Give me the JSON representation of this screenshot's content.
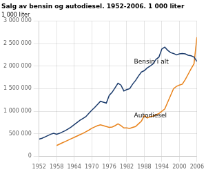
{
  "chart_data": {
    "type": "line",
    "title": "Salg av bensin og autodiesel. 1952-2006. 1 000 liter",
    "ylabel": "1 000 liter",
    "xlim": [
      1952,
      2006
    ],
    "ylim": [
      0,
      3000000
    ],
    "xticks": [
      1952,
      1958,
      1964,
      1970,
      1976,
      1982,
      1988,
      1994,
      2000,
      2006
    ],
    "yticks": [
      0,
      {
        "value": 500000,
        "label": "500 000"
      },
      {
        "value": 1000000,
        "label": "1 000 000"
      },
      {
        "value": 1500000,
        "label": "1 500 000"
      },
      {
        "value": 2000000,
        "label": "2 000 000"
      },
      {
        "value": 2500000,
        "label": "2 500 000"
      },
      {
        "value": 3000000,
        "label": "3 000 000"
      }
    ],
    "grid": true,
    "series": [
      {
        "color": "#1a3a6b",
        "x": [
          1952,
          1953,
          1954,
          1955,
          1956,
          1957,
          1958,
          1959,
          1960,
          1961,
          1962,
          1963,
          1964,
          1965,
          1966,
          1967,
          1968,
          1969,
          1970,
          1971,
          1972,
          1973,
          1974,
          1975,
          1976,
          1977,
          1978,
          1979,
          1980,
          1981,
          1982,
          1983,
          1984,
          1985,
          1986,
          1987,
          1988,
          1989,
          1990,
          1991,
          1992,
          1993,
          1994,
          1995,
          1996,
          1997,
          1998,
          1999,
          2000,
          2001,
          2002,
          2003,
          2004,
          2005,
          2006
        ],
        "values": [
          380000,
          400000,
          430000,
          460000,
          490000,
          510000,
          490000,
          510000,
          540000,
          570000,
          610000,
          650000,
          700000,
          750000,
          800000,
          840000,
          880000,
          950000,
          1020000,
          1080000,
          1150000,
          1220000,
          1200000,
          1180000,
          1350000,
          1420000,
          1520000,
          1620000,
          1580000,
          1450000,
          1480000,
          1500000,
          1600000,
          1680000,
          1780000,
          1870000,
          1900000,
          1960000,
          2000000,
          2050000,
          2150000,
          2200000,
          2380000,
          2420000,
          2350000,
          2300000,
          2280000,
          2250000,
          2270000,
          2280000,
          2270000,
          2240000,
          2230000,
          2200000,
          2100000
        ]
      },
      {
        "color": "#e8821a",
        "x": [
          1958,
          1959,
          1960,
          1961,
          1962,
          1963,
          1964,
          1965,
          1966,
          1967,
          1968,
          1969,
          1970,
          1971,
          1972,
          1973,
          1974,
          1975,
          1976,
          1977,
          1978,
          1979,
          1980,
          1981,
          1982,
          1983,
          1984,
          1985,
          1986,
          1987,
          1988,
          1989,
          1990,
          1991,
          1992,
          1993,
          1994,
          1995,
          1996,
          1997,
          1998,
          1999,
          2000,
          2001,
          2002,
          2003,
          2004,
          2005,
          2006
        ],
        "values": [
          240000,
          270000,
          300000,
          330000,
          360000,
          390000,
          420000,
          450000,
          480000,
          510000,
          545000,
          580000,
          620000,
          650000,
          680000,
          700000,
          680000,
          660000,
          640000,
          650000,
          680000,
          720000,
          680000,
          630000,
          630000,
          620000,
          640000,
          660000,
          720000,
          780000,
          900000,
          850000,
          880000,
          890000,
          920000,
          950000,
          1000000,
          1050000,
          1200000,
          1350000,
          1500000,
          1550000,
          1580000,
          1600000,
          1700000,
          1820000,
          1940000,
          2050000,
          2640000
        ]
      }
    ],
    "annotations": [
      {
        "text": "Bensin i alt",
        "x": 1984.5,
        "y": 2060000
      },
      {
        "text": "Autodiesel",
        "x": 1984.5,
        "y": 870000
      }
    ]
  }
}
